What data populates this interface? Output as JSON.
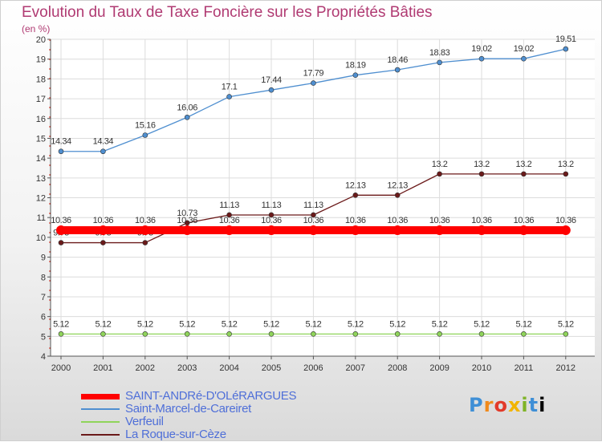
{
  "header": {
    "title": "Evolution du Taux de Taxe Foncière sur les Propriétés Bâties",
    "unit": "(en %)"
  },
  "logo": {
    "letters": [
      "P",
      "r",
      "o",
      "x",
      "i",
      "t",
      "i"
    ]
  },
  "chart_data": {
    "type": "line",
    "title": "Evolution du Taux de Taxe Foncière sur les Propriétés Bâties",
    "ylabel": "(en %)",
    "xlabel": "",
    "x": [
      "2000",
      "2001",
      "2002",
      "2003",
      "2004",
      "2005",
      "2006",
      "2007",
      "2008",
      "2009",
      "2010",
      "2011",
      "2012"
    ],
    "ylim": [
      4,
      20
    ],
    "yticks": [
      4,
      5,
      6,
      7,
      8,
      9,
      10,
      11,
      12,
      13,
      14,
      15,
      16,
      17,
      18,
      19,
      20
    ],
    "legend_position": "bottom-left",
    "series": [
      {
        "name": "Saint-Marcel-de-Careiret",
        "color": "#4f8fd0",
        "values": [
          14.34,
          14.34,
          15.16,
          16.06,
          17.1,
          17.44,
          17.79,
          18.19,
          18.46,
          18.83,
          19.02,
          19.02,
          19.51
        ],
        "labels": [
          "14.34",
          "14.34",
          "15.16",
          "16.06",
          "17.1",
          "17.44",
          "17.79",
          "18.19",
          "18.46",
          "18.83",
          "19.02",
          "19.02",
          "19.51"
        ]
      },
      {
        "name": "La Roque-sur-Cèze",
        "color": "#6b1a1a",
        "values": [
          9.73,
          9.73,
          9.73,
          10.73,
          11.13,
          11.13,
          11.13,
          12.13,
          12.13,
          13.2,
          13.2,
          13.2,
          13.2
        ],
        "labels": [
          "9.73",
          "9.73",
          "9.73",
          "10.73",
          "11.13",
          "11.13",
          "11.13",
          "12.13",
          "12.13",
          "13.2",
          "13.2",
          "13.2",
          "13.2"
        ]
      },
      {
        "name": "SAINT-ANDRé-D'OLéRARGUES",
        "color": "#ff0000",
        "values": [
          10.36,
          10.36,
          10.36,
          10.36,
          10.36,
          10.36,
          10.36,
          10.36,
          10.36,
          10.36,
          10.36,
          10.36,
          10.36
        ],
        "labels": [
          "10.36",
          "10.36",
          "10.36",
          "10.36",
          "10.36",
          "10.36",
          "10.36",
          "10.36",
          "10.36",
          "10.36",
          "10.36",
          "10.36",
          "10.36"
        ]
      },
      {
        "name": "Verfeuil",
        "color": "#8fd45a",
        "values": [
          5.12,
          5.12,
          5.12,
          5.12,
          5.12,
          5.12,
          5.12,
          5.12,
          5.12,
          5.12,
          5.12,
          5.12,
          5.12
        ],
        "labels": [
          "5.12",
          "5.12",
          "5.12",
          "5.12",
          "5.12",
          "5.12",
          "5.12",
          "5.12",
          "5.12",
          "5.12",
          "5.12",
          "5.12",
          "5.12"
        ]
      }
    ],
    "legend": [
      {
        "name": "SAINT-ANDRé-D'OLéRARGUES",
        "color": "#ff0000"
      },
      {
        "name": "Saint-Marcel-de-Careiret",
        "color": "#4f8fd0"
      },
      {
        "name": "Verfeuil",
        "color": "#8fd45a"
      },
      {
        "name": "La Roque-sur-Cèze",
        "color": "#6b1a1a"
      }
    ]
  }
}
